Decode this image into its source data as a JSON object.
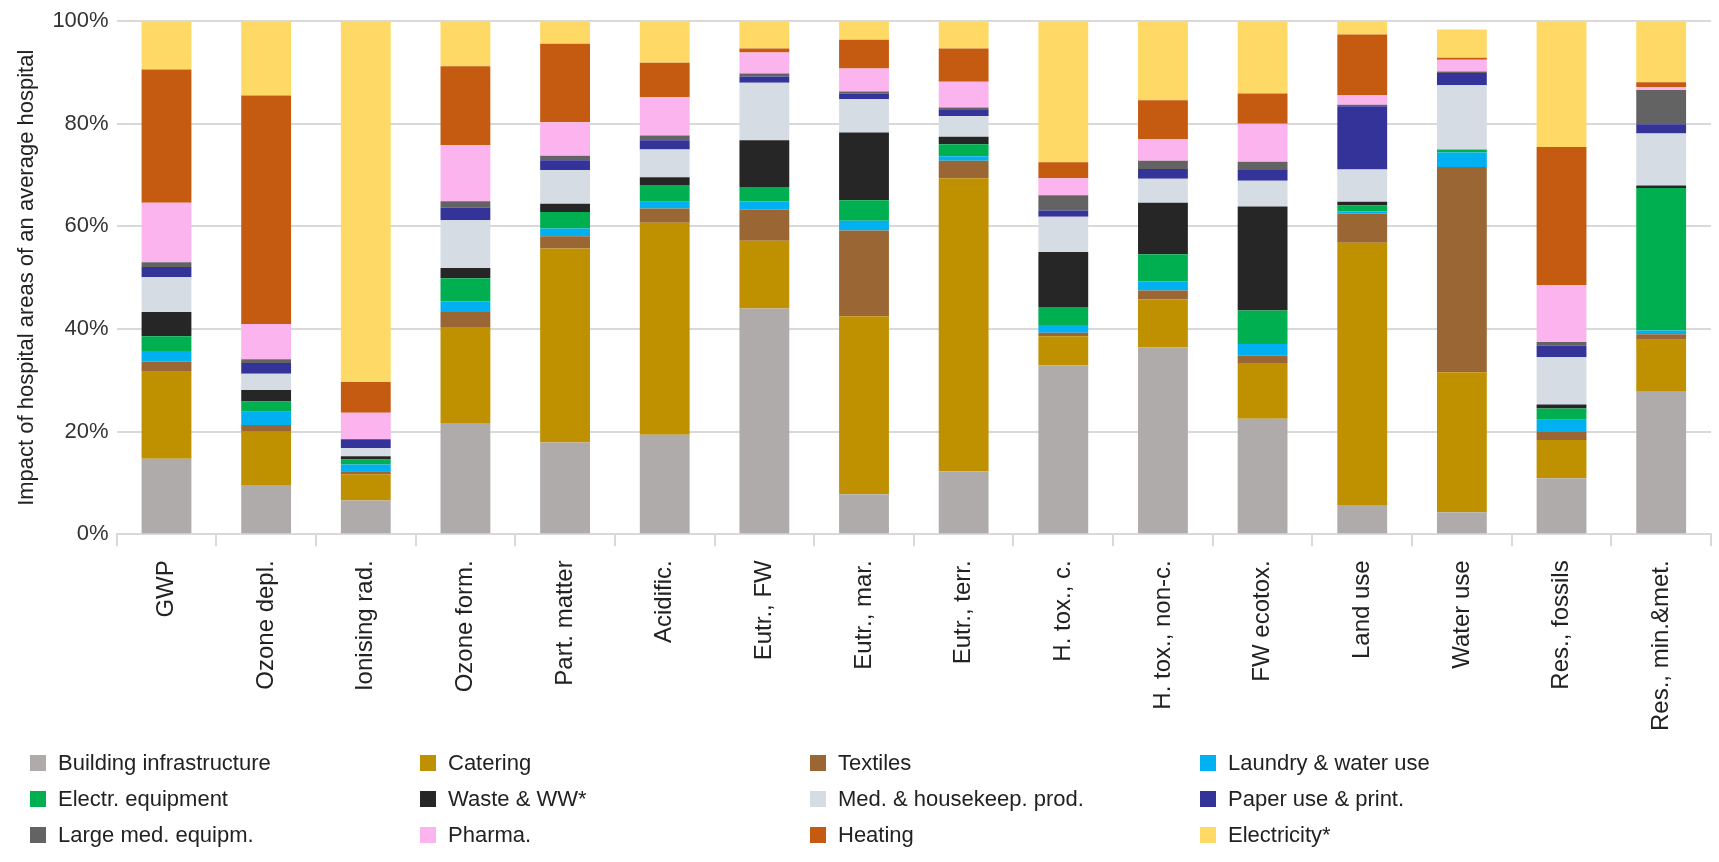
{
  "chart_data": {
    "type": "bar",
    "stacked": true,
    "ylabel": "Impact of hospital areas of an average hospital",
    "categories": [
      "GWP",
      "Ozone depl.",
      "Ionising rad.",
      "Ozone form.",
      "Part. matter",
      "Acidific.",
      "Eutr., FW",
      "Eutr., mar.",
      "Eutr., terr.",
      "H. tox., c.",
      "H. tox., non-c.",
      "FW ecotox.",
      "Land use",
      "Water use",
      "Res., fossils",
      "Res., min.&met."
    ],
    "series": [
      {
        "name": "Building infrastructure",
        "color": "#afabab",
        "values": [
          14.7,
          9.6,
          6.6,
          21.7,
          17.9,
          19.4,
          44.0,
          7.8,
          12.3,
          32.9,
          36.4,
          22.5,
          5.7,
          4.3,
          10.9,
          27.8
        ]
      },
      {
        "name": "Catering",
        "color": "#bf9000",
        "values": [
          17.0,
          10.4,
          5.1,
          18.7,
          37.8,
          41.3,
          13.2,
          34.7,
          57.1,
          5.7,
          9.4,
          10.9,
          51.1,
          27.3,
          7.5,
          10.1
        ]
      },
      {
        "name": "Textiles",
        "color": "#9a6633",
        "values": [
          2.0,
          1.3,
          0.6,
          2.9,
          2.4,
          2.8,
          6.1,
          16.7,
          3.4,
          0.7,
          1.7,
          1.4,
          5.7,
          40.0,
          1.7,
          1.1
        ]
      },
      {
        "name": "Laundry & water use",
        "color": "#00b0f0",
        "values": [
          2.0,
          2.6,
          1.3,
          2.1,
          1.5,
          1.3,
          1.6,
          1.9,
          0.9,
          1.5,
          1.8,
          2.3,
          0.4,
          2.8,
          2.2,
          0.7
        ]
      },
      {
        "name": "Electr. equipment",
        "color": "#00b050",
        "values": [
          2.9,
          2.0,
          1.0,
          4.5,
          3.2,
          3.3,
          2.8,
          4.0,
          2.3,
          3.5,
          5.3,
          6.5,
          1.2,
          0.6,
          2.2,
          27.8
        ]
      },
      {
        "name": "Waste & WW*",
        "color": "#262626",
        "values": [
          4.7,
          2.2,
          0.6,
          2.0,
          1.6,
          1.5,
          9.1,
          13.2,
          1.5,
          10.7,
          10.0,
          20.3,
          0.7,
          0,
          0.8,
          0.5
        ]
      },
      {
        "name": "Med. & housekeep. prod.",
        "color": "#d6dce4",
        "values": [
          6.8,
          3.2,
          1.6,
          9.3,
          6.6,
          5.4,
          11.2,
          6.5,
          4.0,
          6.9,
          4.7,
          5.0,
          6.3,
          12.5,
          9.2,
          10.1
        ]
      },
      {
        "name": "Paper use & print.",
        "color": "#333399",
        "values": [
          2.0,
          2.1,
          1.7,
          2.5,
          1.9,
          1.8,
          1.2,
          1.1,
          1.2,
          1.2,
          1.9,
          2.1,
          12.3,
          2.4,
          2.3,
          1.8
        ]
      },
      {
        "name": "Large med. equipm.",
        "color": "#636363",
        "values": [
          0.9,
          0.7,
          null,
          1.2,
          0.9,
          0.9,
          0.6,
          0.4,
          0.5,
          3.0,
          1.6,
          1.6,
          0.3,
          0.3,
          0.7,
          6.7
        ]
      },
      {
        "name": "Pharma.",
        "color": "#fbb4ee",
        "values": [
          11.6,
          6.9,
          5.2,
          10.9,
          6.5,
          7.5,
          4.1,
          4.5,
          5.0,
          3.3,
          4.2,
          7.4,
          1.9,
          2.3,
          11.1,
          0.6
        ]
      },
      {
        "name": "Heating",
        "color": "#c55a11",
        "values": [
          26.0,
          44.5,
          6.0,
          15.4,
          15.3,
          6.7,
          0.8,
          5.6,
          6.5,
          3.1,
          7.6,
          5.9,
          11.8,
          0.4,
          26.9,
          0.9
        ]
      },
      {
        "name": "Electricity*",
        "color": "#ffd966",
        "values": [
          9.4,
          14.5,
          70.2,
          8.8,
          4.4,
          8.1,
          5.3,
          3.6,
          5.3,
          27.5,
          15.4,
          14.1,
          2.6,
          5.5,
          24.5,
          11.9
        ]
      }
    ],
    "ylim": [
      0,
      100
    ],
    "yticks": [
      {
        "value": 0,
        "label": "0%"
      },
      {
        "value": 20,
        "label": "20%"
      },
      {
        "value": 40,
        "label": "40%"
      },
      {
        "value": 60,
        "label": "60%"
      },
      {
        "value": 80,
        "label": "80%"
      },
      {
        "value": 100,
        "label": "100%"
      }
    ],
    "grid": "y",
    "legend": "bottom"
  }
}
